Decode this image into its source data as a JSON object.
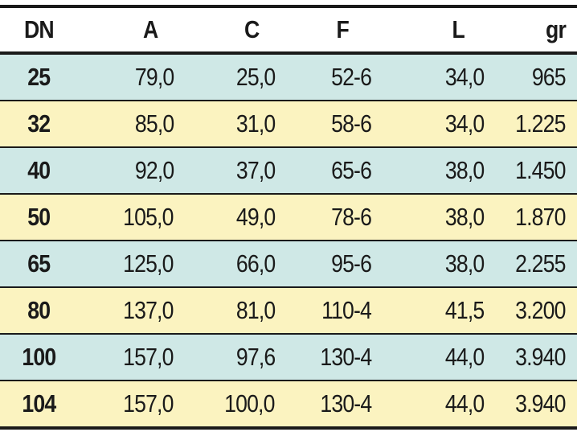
{
  "table": {
    "headers": [
      "DN",
      "A",
      "C",
      "F",
      "L",
      "gr"
    ],
    "rows": [
      {
        "dn": "25",
        "a": "79,0",
        "c": "25,0",
        "f": "52-6",
        "l": "34,0",
        "gr": "965",
        "shade": "blue"
      },
      {
        "dn": "32",
        "a": "85,0",
        "c": "31,0",
        "f": "58-6",
        "l": "34,0",
        "gr": "1.225",
        "shade": "yellow"
      },
      {
        "dn": "40",
        "a": "92,0",
        "c": "37,0",
        "f": "65-6",
        "l": "38,0",
        "gr": "1.450",
        "shade": "blue"
      },
      {
        "dn": "50",
        "a": "105,0",
        "c": "49,0",
        "f": "78-6",
        "l": "38,0",
        "gr": "1.870",
        "shade": "yellow"
      },
      {
        "dn": "65",
        "a": "125,0",
        "c": "66,0",
        "f": "95-6",
        "l": "38,0",
        "gr": "2.255",
        "shade": "blue"
      },
      {
        "dn": "80",
        "a": "137,0",
        "c": "81,0",
        "f": "110-4",
        "l": "41,5",
        "gr": "3.200",
        "shade": "yellow"
      },
      {
        "dn": "100",
        "a": "157,0",
        "c": "97,6",
        "f": "130-4",
        "l": "44,0",
        "gr": "3.940",
        "shade": "blue"
      },
      {
        "dn": "104",
        "a": "157,0",
        "c": "100,0",
        "f": "130-4",
        "l": "44,0",
        "gr": "3.940",
        "shade": "yellow"
      }
    ]
  },
  "colors": {
    "row_blue": "#cfe8e6",
    "row_yellow": "#fbf3c0",
    "text": "#1a1a1a",
    "rule": "#1a1a1a"
  }
}
